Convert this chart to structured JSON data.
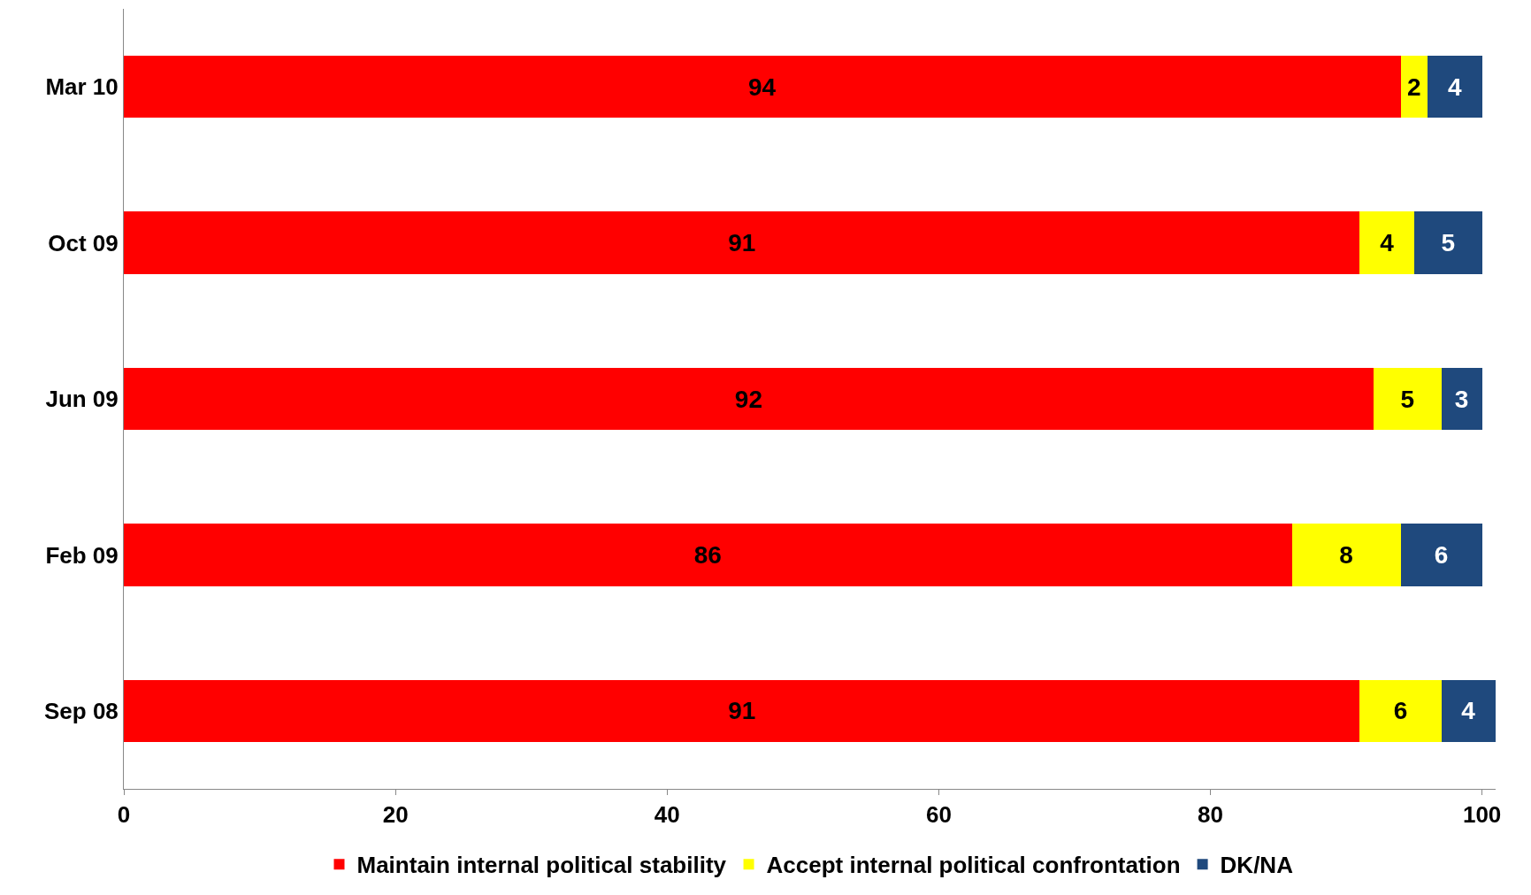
{
  "chart_data": {
    "type": "bar",
    "orientation": "horizontal",
    "stacked": true,
    "data_labels": true,
    "legend": "bottom",
    "categories": [
      "Mar 10",
      "Oct 09",
      "Jun 09",
      "Feb 09",
      "Sep 08"
    ],
    "series": [
      {
        "name": "Maintain internal political stability",
        "color": "#ff0000",
        "values": [
          94,
          91,
          92,
          86,
          91
        ]
      },
      {
        "name": "Accept internal political confrontation",
        "color": "#ffff00",
        "values": [
          2,
          4,
          5,
          8,
          6
        ]
      },
      {
        "name": "DK/NA",
        "color": "#1f497d",
        "values": [
          4,
          5,
          3,
          6,
          4
        ]
      }
    ],
    "xlim": [
      0,
      101
    ],
    "xticks": [
      0,
      20,
      40,
      60,
      80,
      100
    ]
  }
}
